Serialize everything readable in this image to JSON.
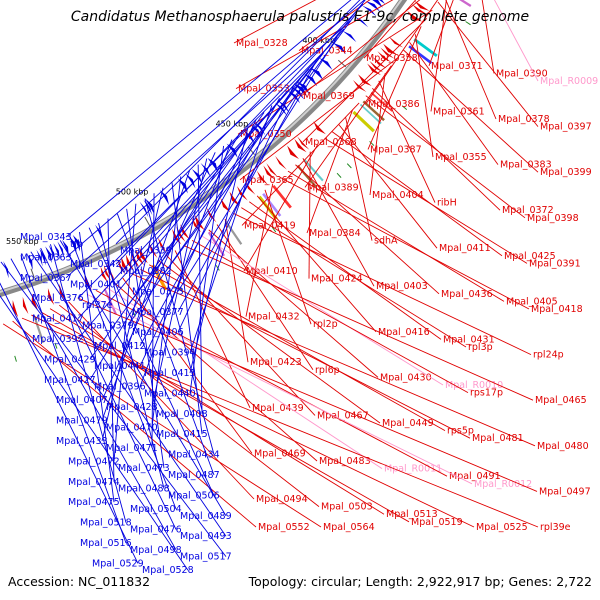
{
  "title": "Candidatus Methanosphaerula palustris E1-9c, complete genome",
  "footer": {
    "accession": "Accession: NC_011832",
    "summary": "Topology: circular; Length: 2,922,917 bp; Genes: 2,722"
  },
  "colors": {
    "forward": "#e00000",
    "reverse": "#0000e0",
    "rna": "#ff99cc",
    "backbone": "#999999"
  },
  "ticks": [
    "350 kbp",
    "400 kbp",
    "450 kbp",
    "500 kbp",
    "550 kbp"
  ],
  "labels_right": [
    {
      "text": "Mpal_0328",
      "color": "red"
    },
    {
      "text": "Mpal_0344",
      "color": "red"
    },
    {
      "text": "Mpal_0358",
      "color": "red"
    },
    {
      "text": "Mpal_0371",
      "color": "red"
    },
    {
      "text": "Mpal_0390",
      "color": "red"
    },
    {
      "text": "Mpal_R0009",
      "color": "pink"
    },
    {
      "text": "Mpal_0353",
      "color": "red"
    },
    {
      "text": "Mpal_0369",
      "color": "red"
    },
    {
      "text": "Mpal_0386",
      "color": "red"
    },
    {
      "text": "Mpal_0361",
      "color": "red"
    },
    {
      "text": "Mpal_0378",
      "color": "red"
    },
    {
      "text": "Mpal_0397",
      "color": "red"
    },
    {
      "text": "Mpal_0350",
      "color": "red"
    },
    {
      "text": "Mpal_0368",
      "color": "red"
    },
    {
      "text": "Mpal_0387",
      "color": "red"
    },
    {
      "text": "Mpal_0355",
      "color": "red"
    },
    {
      "text": "Mpal_0383",
      "color": "red"
    },
    {
      "text": "Mpal_0399",
      "color": "red"
    },
    {
      "text": "Mpal_0365",
      "color": "red"
    },
    {
      "text": "Mpal_0389",
      "color": "red"
    },
    {
      "text": "Mpal_0404",
      "color": "red"
    },
    {
      "text": "ribH",
      "color": "red"
    },
    {
      "text": "Mpal_0372",
      "color": "red"
    },
    {
      "text": "Mpal_0398",
      "color": "red"
    },
    {
      "text": "Mpal_0419",
      "color": "red"
    },
    {
      "text": "Mpal_0384",
      "color": "red"
    },
    {
      "text": "sdhA",
      "color": "red"
    },
    {
      "text": "Mpal_0411",
      "color": "red"
    },
    {
      "text": "Mpal_0425",
      "color": "red"
    },
    {
      "text": "Mpal_0391",
      "color": "red"
    },
    {
      "text": "Mpal_0410",
      "color": "red"
    },
    {
      "text": "Mpal_0424",
      "color": "red"
    },
    {
      "text": "Mpal_0403",
      "color": "red"
    },
    {
      "text": "Mpal_0436",
      "color": "red"
    },
    {
      "text": "Mpal_0405",
      "color": "red"
    },
    {
      "text": "Mpal_0418",
      "color": "red"
    },
    {
      "text": "Mpal_0432",
      "color": "red"
    },
    {
      "text": "rpl2p",
      "color": "red"
    },
    {
      "text": "Mpal_0416",
      "color": "red"
    },
    {
      "text": "Mpal_0431",
      "color": "red"
    },
    {
      "text": "rpl3p",
      "color": "red"
    },
    {
      "text": "rpl24p",
      "color": "red"
    },
    {
      "text": "Mpal_0423",
      "color": "red"
    },
    {
      "text": "rpl6p",
      "color": "red"
    },
    {
      "text": "Mpal_0430",
      "color": "red"
    },
    {
      "text": "Mpal_R0010",
      "color": "pink"
    },
    {
      "text": "rps17p",
      "color": "red"
    },
    {
      "text": "Mpal_0465",
      "color": "red"
    },
    {
      "text": "Mpal_0439",
      "color": "red"
    },
    {
      "text": "Mpal_0467",
      "color": "red"
    },
    {
      "text": "Mpal_0449",
      "color": "red"
    },
    {
      "text": "rps5p",
      "color": "red"
    },
    {
      "text": "Mpal_0481",
      "color": "red"
    },
    {
      "text": "Mpal_0480",
      "color": "red"
    },
    {
      "text": "Mpal_0469",
      "color": "red"
    },
    {
      "text": "Mpal_0483",
      "color": "red"
    },
    {
      "text": "Mpal_R0011",
      "color": "pink"
    },
    {
      "text": "Mpal_0491",
      "color": "red"
    },
    {
      "text": "Mpal_R0012",
      "color": "pink"
    },
    {
      "text": "Mpal_0497",
      "color": "red"
    },
    {
      "text": "Mpal_0494",
      "color": "red"
    },
    {
      "text": "Mpal_0503",
      "color": "red"
    },
    {
      "text": "Mpal_0513",
      "color": "red"
    },
    {
      "text": "Mpal_0519",
      "color": "red"
    },
    {
      "text": "Mpal_0525",
      "color": "red"
    },
    {
      "text": "rpl39e",
      "color": "red"
    },
    {
      "text": "Mpal_0552",
      "color": "red"
    },
    {
      "text": "Mpal_0564",
      "color": "red"
    }
  ],
  "labels_left": [
    "Mpal_0343",
    "tfb",
    "Mpal_0339",
    "Mpal_0363",
    "Mpal_0342",
    "Mpal_0382",
    "Mpal_0367",
    "Mpal_0401",
    "Mpal_0373",
    "Mpal_0376",
    "rpl37e",
    "Mpal_0377",
    "Mpal_0417",
    "Mpal_0379",
    "Mpal_0406",
    "Mpal_0392",
    "Mpal_0412",
    "Mpal_0394",
    "Mpal_0429",
    "Mpal_0441",
    "Mpal_0413",
    "Mpal_0427",
    "Mpal_0396",
    "Mpal_0440",
    "Mpal_0407",
    "Mpal_0428",
    "Mpal_0408",
    "Mpal_0479",
    "Mpal_0470",
    "Mpal_0415",
    "Mpal_0433",
    "Mpal_0471",
    "Mpal_0434",
    "Mpal_0472",
    "Mpal_0473",
    "Mpal_0487",
    "Mpal_0474",
    "Mpal_0488",
    "Mpal_0506",
    "Mpal_0475",
    "Mpal_0504",
    "Mpal_0489",
    "Mpal_0518",
    "Mpal_0476",
    "Mpal_0493",
    "Mpal_0516",
    "Mpal_0498",
    "Mpal_0517",
    "Mpal_0529",
    "Mpal_0528"
  ]
}
